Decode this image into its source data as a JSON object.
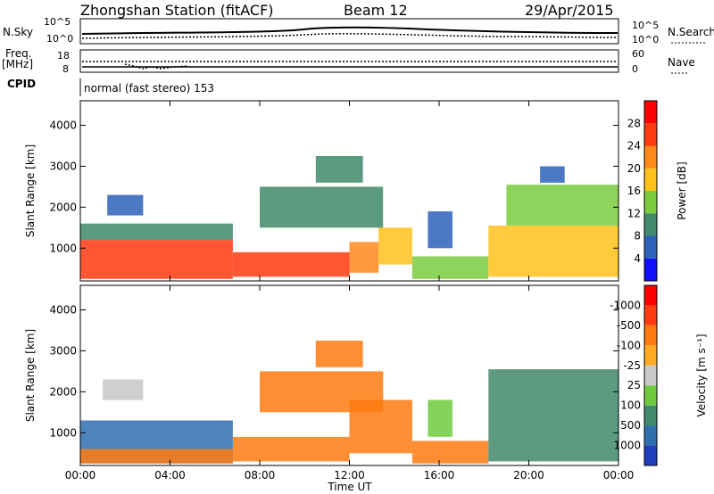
{
  "header": {
    "station": "Zhongshan Station (fitACF)",
    "beam": "Beam 12",
    "date": "29/Apr/2015"
  },
  "noise_panel": {
    "left_label": "N.Sky",
    "right_label": "N.Search",
    "left_ticks": [
      "10^5",
      "10^0"
    ],
    "right_ticks": [
      "10^5",
      "10^0"
    ]
  },
  "freq_panel": {
    "left_label_line1": "Freq.",
    "left_label_line2": "[MHz]",
    "left_ticks": [
      "18",
      "8"
    ],
    "right_label": "Nave",
    "right_ticks": [
      "60",
      "0"
    ]
  },
  "cpid": {
    "label": "CPID",
    "value": "normal (fast stereo) 153"
  },
  "chart_data": [
    {
      "type": "heatmap",
      "name": "power",
      "ylabel": "Slant Range [km]",
      "yticks": [
        "1000",
        "2000",
        "3000",
        "4000"
      ],
      "ylim": [
        200,
        4600
      ],
      "colorbar_label": "Power [dB]",
      "colorbar_ticks": [
        "4",
        "8",
        "12",
        "16",
        "20",
        "24",
        "28"
      ],
      "colorbar_colors": [
        "#1010ff",
        "#2d62b8",
        "#3f8a6a",
        "#7acb3e",
        "#ffc21a",
        "#ff8a1a",
        "#ff3a10",
        "#ff0000"
      ],
      "cells": [
        {
          "t0": 0.0,
          "t1": 6.8,
          "r0": 250,
          "r1": 1200,
          "level": 6
        },
        {
          "t0": 6.8,
          "t1": 12.0,
          "r0": 300,
          "r1": 900,
          "level": 6
        },
        {
          "t0": 12.0,
          "t1": 13.3,
          "r0": 400,
          "r1": 1150,
          "level": 5
        },
        {
          "t0": 13.3,
          "t1": 14.8,
          "r0": 600,
          "r1": 1500,
          "level": 4
        },
        {
          "t0": 14.8,
          "t1": 18.2,
          "r0": 250,
          "r1": 800,
          "level": 3
        },
        {
          "t0": 18.2,
          "t1": 24.0,
          "r0": 300,
          "r1": 1550,
          "level": 4
        },
        {
          "t0": 0.0,
          "t1": 6.8,
          "r0": 1200,
          "r1": 1600,
          "level": 2
        },
        {
          "t0": 1.2,
          "t1": 2.8,
          "r0": 1800,
          "r1": 2300,
          "level": 1
        },
        {
          "t0": 8.0,
          "t1": 13.5,
          "r0": 1500,
          "r1": 2500,
          "level": 2
        },
        {
          "t0": 10.5,
          "t1": 12.6,
          "r0": 2600,
          "r1": 3250,
          "level": 2
        },
        {
          "t0": 15.5,
          "t1": 16.6,
          "r0": 1000,
          "r1": 1900,
          "level": 1
        },
        {
          "t0": 19.0,
          "t1": 24.0,
          "r0": 1550,
          "r1": 2550,
          "level": 3
        },
        {
          "t0": 20.5,
          "t1": 21.6,
          "r0": 2600,
          "r1": 3000,
          "level": 1
        }
      ]
    },
    {
      "type": "heatmap",
      "name": "velocity",
      "ylabel": "Slant Range [km]",
      "yticks": [
        "1000",
        "2000",
        "3000",
        "4000"
      ],
      "ylim": [
        200,
        4600
      ],
      "xlabel": "Time UT",
      "xticks": [
        "00:00",
        "04:00",
        "08:00",
        "12:00",
        "16:00",
        "20:00",
        "00:00"
      ],
      "xlim": [
        0,
        24
      ],
      "colorbar_label": "Velocity [m s⁻¹]",
      "colorbar_ticks": [
        "1000",
        "500",
        "100",
        "25",
        "-25",
        "-100",
        "-500",
        "-1000"
      ],
      "colorbar_colors": [
        "#1f3fbf",
        "#2f6fb0",
        "#3f8a6a",
        "#6ecb3e",
        "#c8c8c8",
        "#ffaa20",
        "#ff7a10",
        "#ff3a10",
        "#ff0000"
      ],
      "cells": [
        {
          "t0": 0.0,
          "t1": 6.8,
          "r0": 250,
          "r1": 1300,
          "level": 1
        },
        {
          "t0": 0.0,
          "t1": 6.8,
          "r0": 250,
          "r1": 600,
          "level": 6
        },
        {
          "t0": 6.8,
          "t1": 12.0,
          "r0": 300,
          "r1": 900,
          "level": 6
        },
        {
          "t0": 12.0,
          "t1": 14.8,
          "r0": 500,
          "r1": 1800,
          "level": 6
        },
        {
          "t0": 14.8,
          "t1": 18.2,
          "r0": 250,
          "r1": 800,
          "level": 6
        },
        {
          "t0": 15.5,
          "t1": 16.6,
          "r0": 900,
          "r1": 1800,
          "level": 3
        },
        {
          "t0": 18.2,
          "t1": 24.0,
          "r0": 300,
          "r1": 2550,
          "level": 2
        },
        {
          "t0": 1.0,
          "t1": 2.8,
          "r0": 1800,
          "r1": 2300,
          "level": 4
        },
        {
          "t0": 8.0,
          "t1": 13.5,
          "r0": 1500,
          "r1": 2500,
          "level": 6
        },
        {
          "t0": 10.5,
          "t1": 12.6,
          "r0": 2600,
          "r1": 3250,
          "level": 6
        }
      ]
    }
  ]
}
